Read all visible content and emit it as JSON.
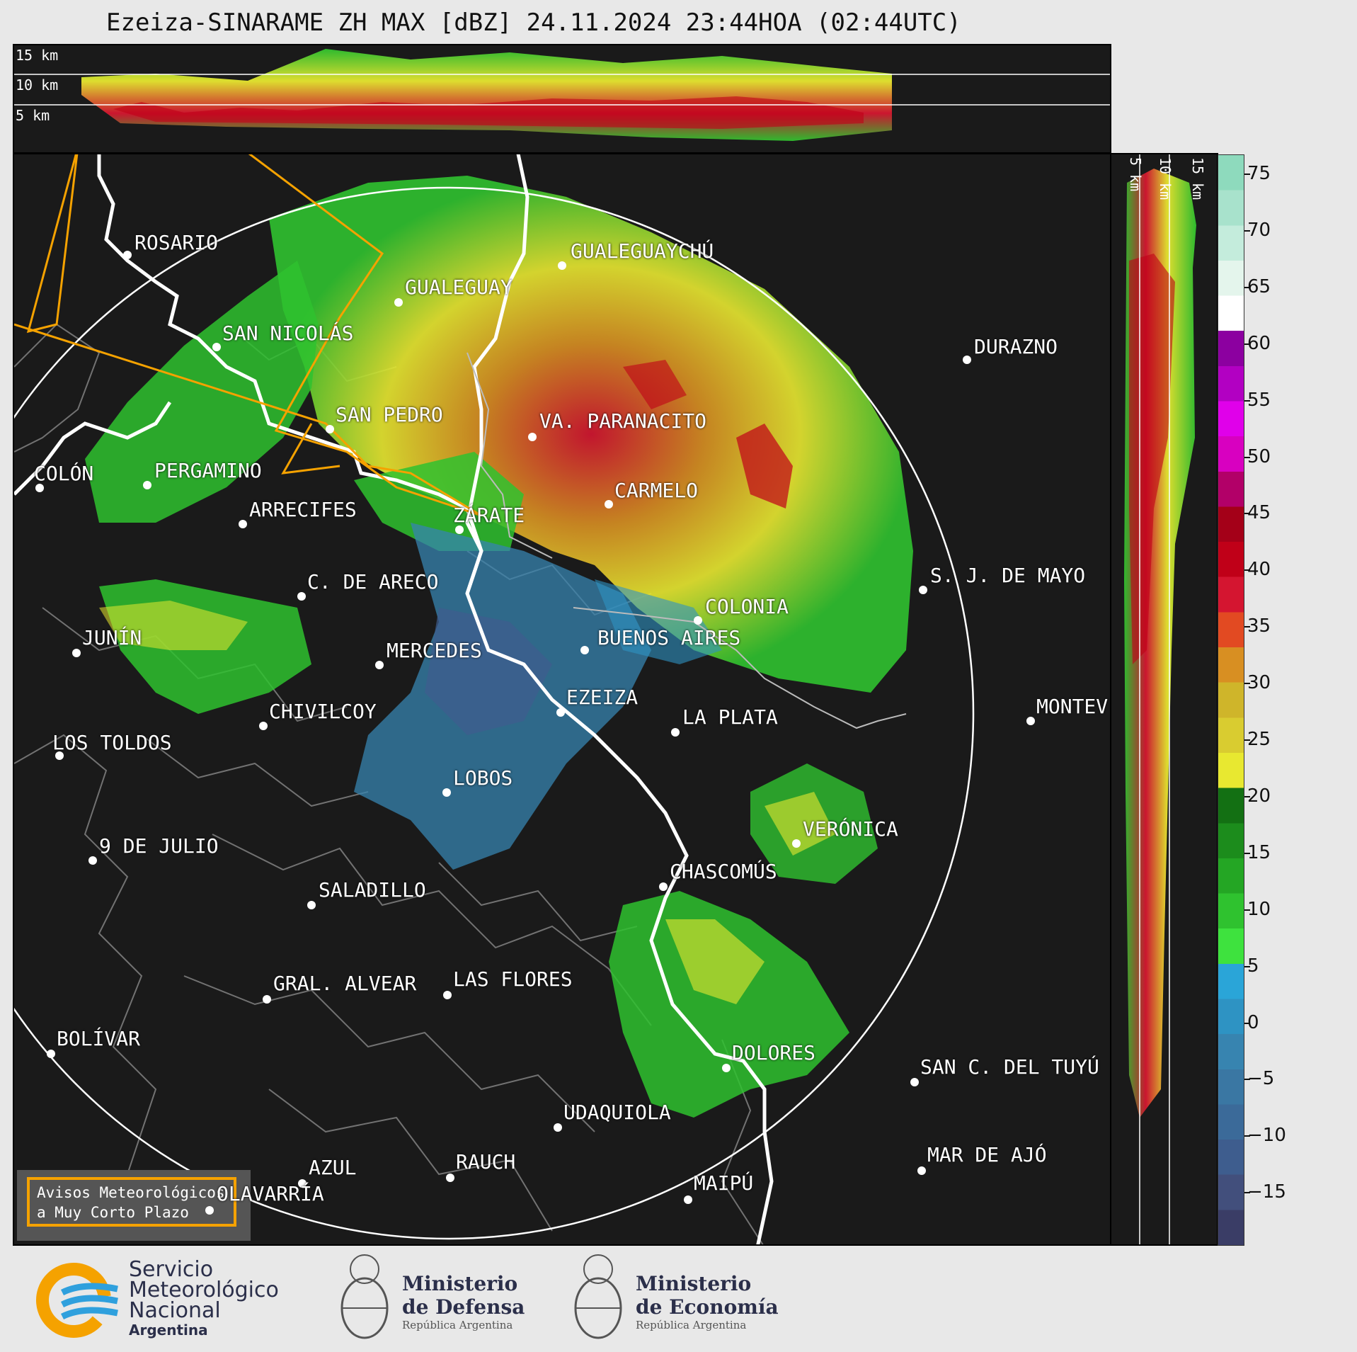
{
  "title": "Ezeiza-SINARAME ZH MAX [dBZ] 24.11.2024 23:44HOA (02:44UTC)",
  "top_section": {
    "height_labels": [
      "15 km",
      "10 km",
      "5 km"
    ]
  },
  "side_section": {
    "height_labels": [
      "5 km",
      "10 km",
      "15 km"
    ]
  },
  "colorbar": {
    "unit": "dBZ",
    "ticks": [
      "75",
      "70",
      "65",
      "60",
      "55",
      "50",
      "45",
      "40",
      "35",
      "30",
      "25",
      "20",
      "15",
      "10",
      "5",
      "0",
      "−5",
      "−10",
      "−15"
    ],
    "colors": [
      "#3a3d66",
      "#424f7c",
      "#3e5d8e",
      "#3b6a99",
      "#3a77a3",
      "#3784b0",
      "#2e93c3",
      "#2aa5d8",
      "#3ee23e",
      "#2fc22f",
      "#24a624",
      "#1c8c1c",
      "#137013",
      "#e8e830",
      "#d9cc30",
      "#cfb52a",
      "#d88f22",
      "#e24a22",
      "#d41530",
      "#c00018",
      "#a40018",
      "#b20068",
      "#d800c0",
      "#e000ea",
      "#b200c2",
      "#8c00a0",
      "#ffffff",
      "#e4f5ec",
      "#c4ecdc",
      "#a8e2cc",
      "#8edabd"
    ]
  },
  "cities": [
    {
      "name": "ROSARIO"
    },
    {
      "name": "GUALEGUAYCHÚ"
    },
    {
      "name": "GUALEGUAY"
    },
    {
      "name": "SAN NICOLÁS"
    },
    {
      "name": "DURAZNO"
    },
    {
      "name": "SAN PEDRO"
    },
    {
      "name": "VA. PARANACITO"
    },
    {
      "name": "COLÓN"
    },
    {
      "name": "PERGAMINO"
    },
    {
      "name": "CARMELO"
    },
    {
      "name": "ARRECIFES"
    },
    {
      "name": "ZÁRATE"
    },
    {
      "name": "S. J. DE MAYO"
    },
    {
      "name": "C. DE ARECO"
    },
    {
      "name": "COLONIA"
    },
    {
      "name": "JUNÍN"
    },
    {
      "name": "BUENOS AIRES"
    },
    {
      "name": "MERCEDES"
    },
    {
      "name": "MONTEV"
    },
    {
      "name": "EZEIZA"
    },
    {
      "name": "CHIVILCOY"
    },
    {
      "name": "LA PLATA"
    },
    {
      "name": "LOS TOLDOS"
    },
    {
      "name": "LOBOS"
    },
    {
      "name": "VERÓNICA"
    },
    {
      "name": "9 DE JULIO"
    },
    {
      "name": "CHASCOMÚS"
    },
    {
      "name": "SALADILLO"
    },
    {
      "name": "GRAL. ALVEAR"
    },
    {
      "name": "LAS FLORES"
    },
    {
      "name": "BOLÍVAR"
    },
    {
      "name": "DOLORES"
    },
    {
      "name": "SAN C. DEL TUYÚ"
    },
    {
      "name": "UDAQUIOLA"
    },
    {
      "name": "MAR DE AJÓ"
    },
    {
      "name": "RAUCH"
    },
    {
      "name": "AZUL"
    },
    {
      "name": "OLAVARRÍA"
    },
    {
      "name": "MAIPÚ"
    }
  ],
  "warnings_box": {
    "line1": "Avisos Meteorológicos",
    "line2": "a Muy Corto Plazo"
  },
  "footer": {
    "smn": {
      "line1": "Servicio",
      "line2": "Meteorológico",
      "line3": "Nacional",
      "line4": "Argentina"
    },
    "defensa": {
      "line1": "Ministerio",
      "line2": "de Defensa",
      "line3": "República Argentina"
    },
    "economia": {
      "line1": "Ministerio",
      "line2": "de Economía",
      "line3": "República Argentina"
    }
  }
}
